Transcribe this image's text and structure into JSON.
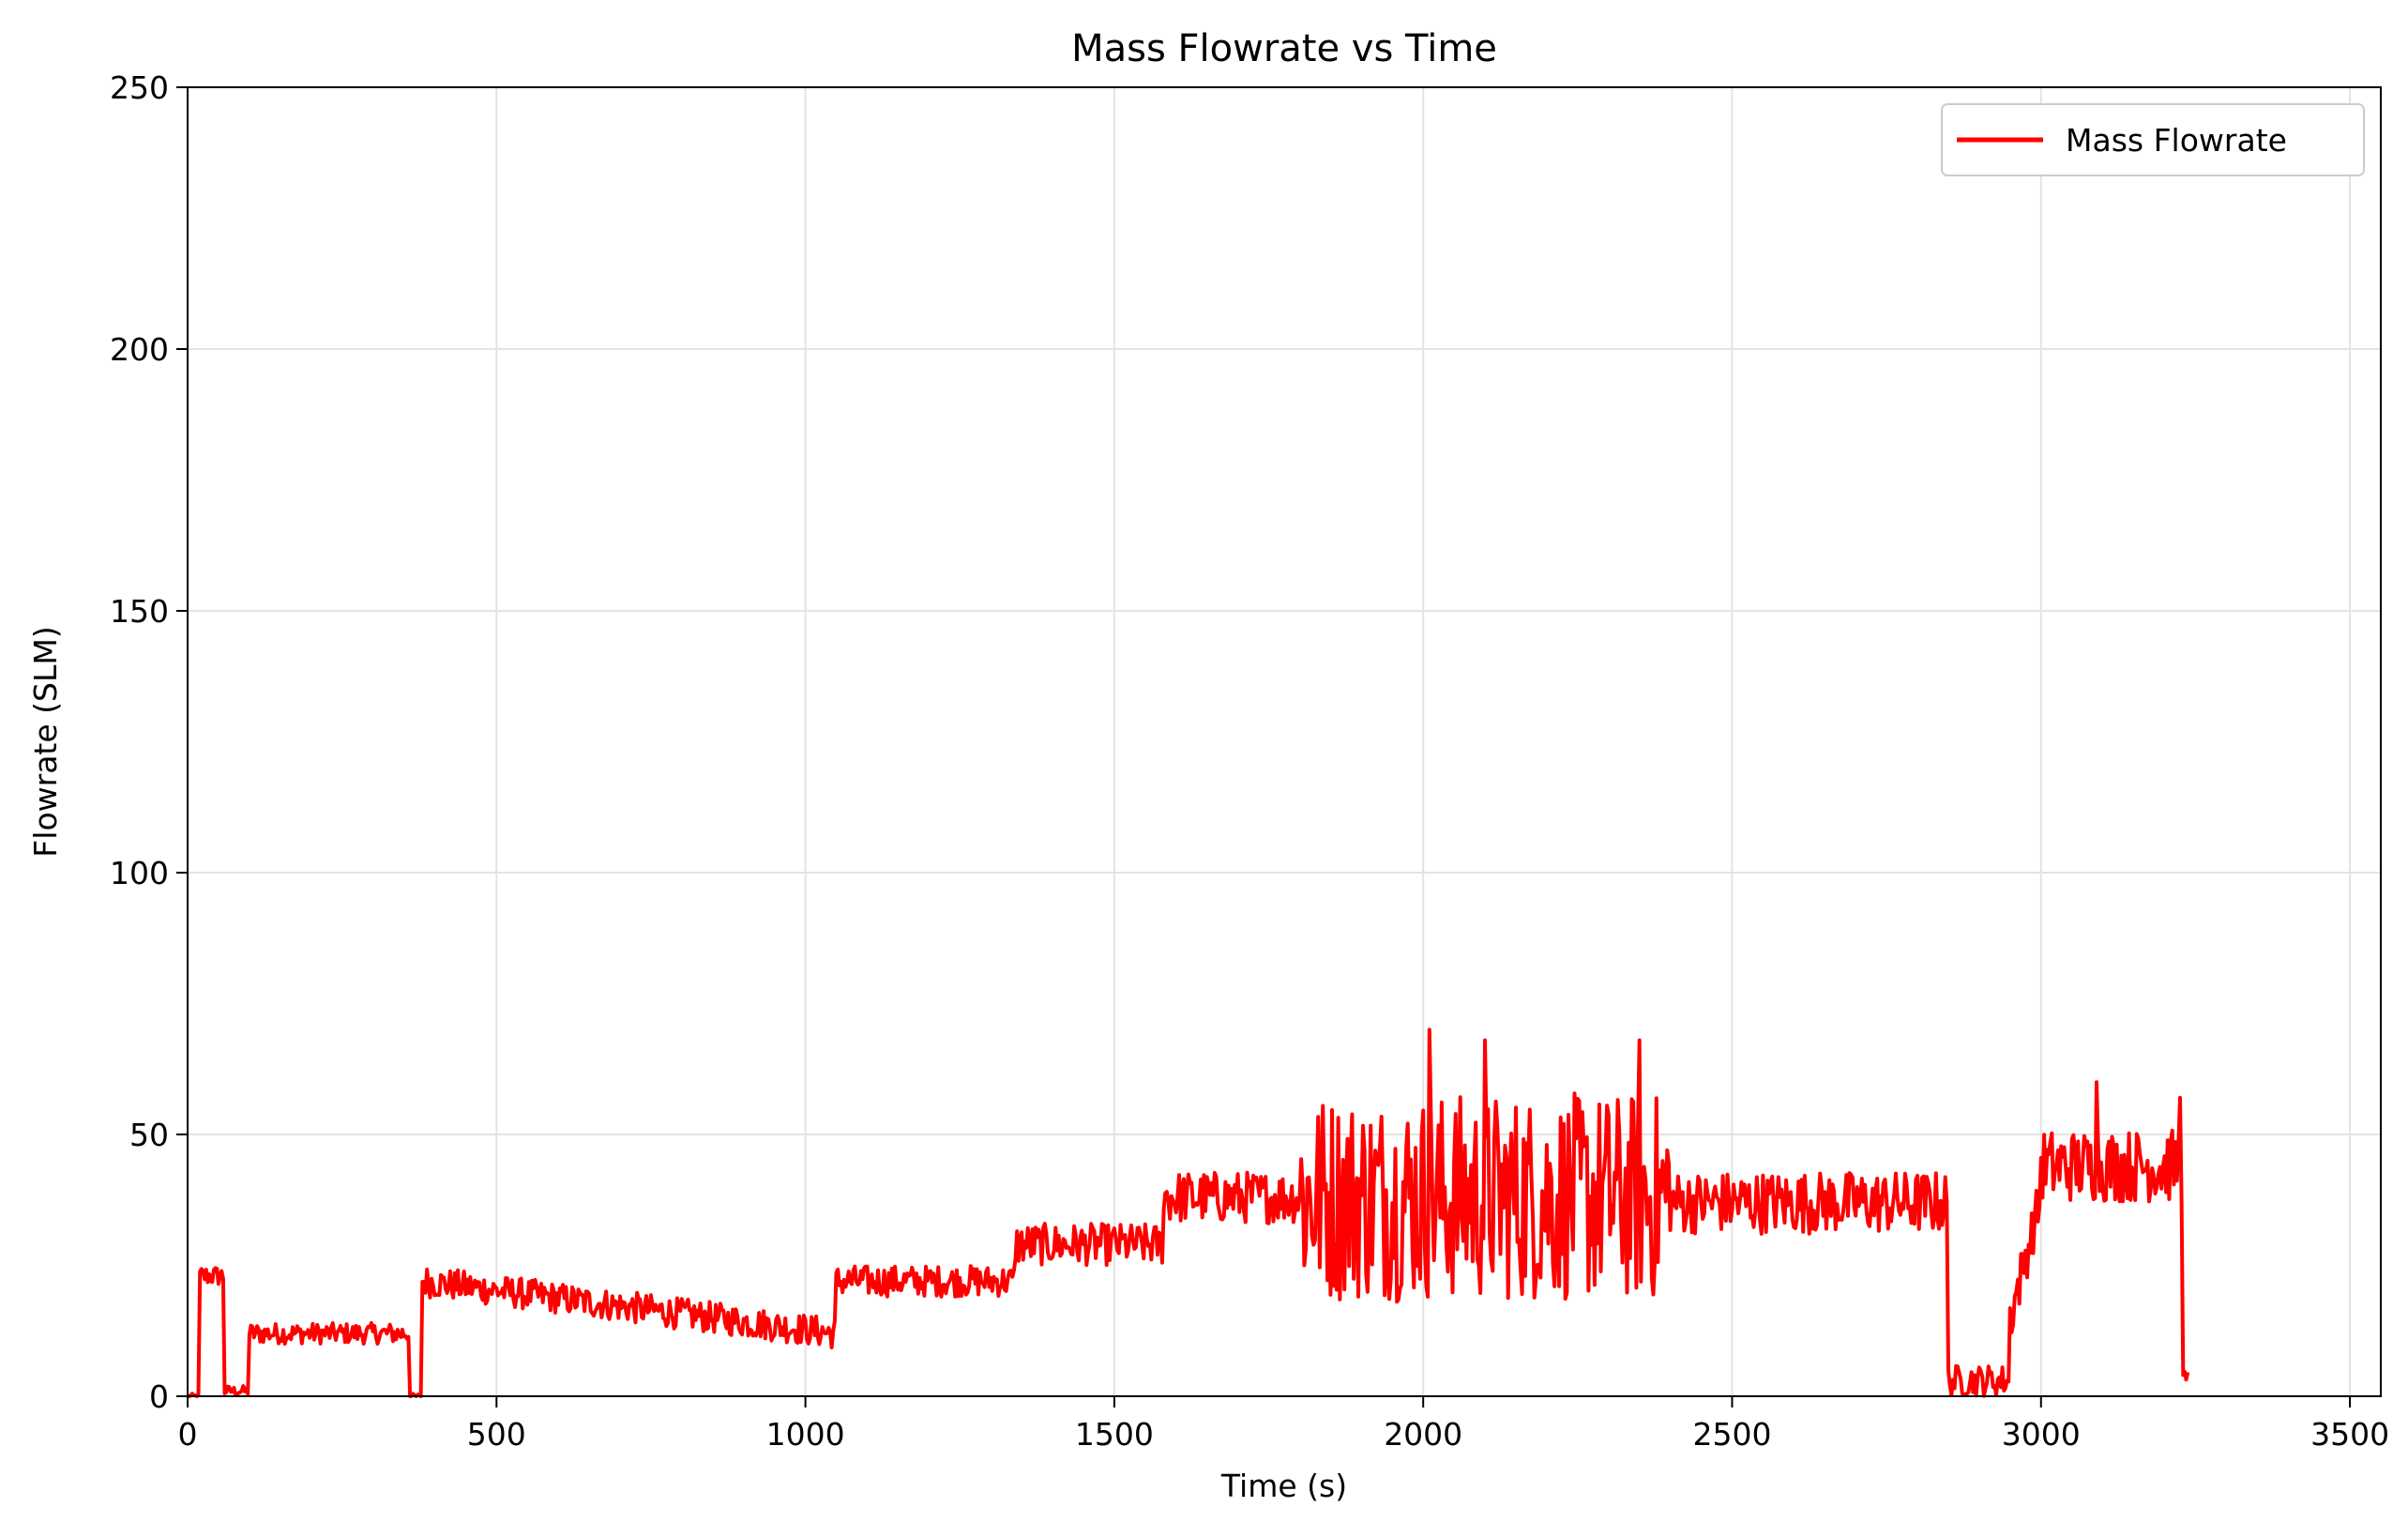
{
  "chart_data": {
    "type": "line",
    "title": "Mass Flowrate vs Time",
    "xlabel": "Time (s)",
    "ylabel": "Flowrate (SLM)",
    "xlim": [
      0,
      3550
    ],
    "ylim": [
      0,
      250
    ],
    "xticks": [
      0,
      500,
      1000,
      1500,
      2000,
      2500,
      3000,
      3500
    ],
    "yticks": [
      0,
      50,
      100,
      150,
      200,
      250
    ],
    "grid": true,
    "legend_position": "top-right",
    "series": [
      {
        "name": "Mass Flowrate",
        "color": "#ff0000",
        "segments": [
          {
            "t": [
              0,
              20
            ],
            "base": 0,
            "noise": 0.5
          },
          {
            "t": [
              20,
              60
            ],
            "base": 23,
            "noise": 2
          },
          {
            "t": [
              60,
              100
            ],
            "base": 1,
            "noise": 1
          },
          {
            "t": [
              100,
              360
            ],
            "base": 12,
            "noise": 2
          },
          {
            "t": [
              360,
              380
            ],
            "base": 0,
            "noise": 0.5
          },
          {
            "t": [
              380,
              1050
            ],
            "base_start": 22,
            "base_end": 12,
            "noise": 3
          },
          {
            "t": [
              1050,
              1340
            ],
            "base": 22,
            "noise": 3
          },
          {
            "t": [
              1340,
              1580
            ],
            "base": 29,
            "noise": 4
          },
          {
            "t": [
              1580,
              1800
            ],
            "base": 38,
            "noise": 5
          },
          {
            "t": [
              1800,
              2400
            ],
            "base": 38,
            "noise": 20
          },
          {
            "t": [
              2400,
              2850
            ],
            "base": 37,
            "noise": 6
          },
          {
            "t": [
              2850,
              2950
            ],
            "base": 3,
            "noise": 3
          },
          {
            "t": [
              2950,
              3000
            ],
            "base_start": 15,
            "base_end": 38,
            "noise": 5
          },
          {
            "t": [
              3000,
              3230
            ],
            "base": 44,
            "noise": 7
          },
          {
            "t": [
              3230,
              3240
            ],
            "base": 3,
            "noise": 2
          }
        ],
        "peaks": [
          {
            "t": 2010,
            "v": 70
          },
          {
            "t": 2350,
            "v": 68
          },
          {
            "t": 2100,
            "v": 68
          },
          {
            "t": 3090,
            "v": 60
          },
          {
            "t": 3225,
            "v": 57
          }
        ]
      }
    ]
  }
}
